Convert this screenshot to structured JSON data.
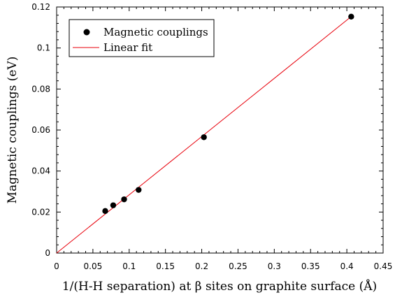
{
  "chart_data": {
    "type": "scatter",
    "xlabel": "1/(H-H separation) at β sites on graphite surface (Å)",
    "ylabel": "Magnetic couplings (eV)",
    "xlim": [
      0,
      0.45
    ],
    "ylim": [
      0,
      0.12
    ],
    "x_ticks": [
      "0",
      "0.05",
      "0.1",
      "0.15",
      "0.2",
      "0.25",
      "0.3",
      "0.35",
      "0.4",
      "0.45"
    ],
    "y_ticks": [
      "0",
      "0.02",
      "0.04",
      "0.06",
      "0.08",
      "0.1",
      "0.12"
    ],
    "grid": false,
    "legend_position": "top-left",
    "series": [
      {
        "name": "Magnetic couplings",
        "kind": "points",
        "color": "#000000",
        "x": [
          0.067,
          0.078,
          0.093,
          0.113,
          0.203,
          0.406
        ],
        "y": [
          0.0205,
          0.0233,
          0.0262,
          0.0308,
          0.0565,
          0.1153
        ]
      },
      {
        "name": "Linear fit",
        "kind": "line",
        "color": "#e8000b",
        "x": [
          0,
          0.406
        ],
        "y": [
          0,
          0.1153
        ]
      }
    ]
  }
}
